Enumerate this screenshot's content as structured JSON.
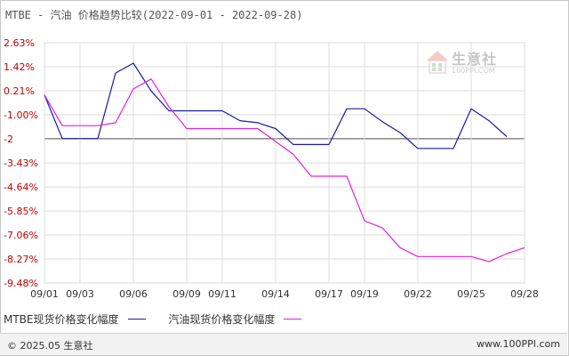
{
  "title": "MTBE - 汽油 价格趋势比较(2022-09-01 - 2022-09-28)",
  "watermark": {
    "text": "生意社",
    "sub": "100PPI.COM"
  },
  "legend": [
    {
      "label": "MTBE现货价格变化幅度",
      "color": "#1a1aa6"
    },
    {
      "label": "汽油现货价格变化幅度",
      "color": "#e020e0"
    }
  ],
  "footer": {
    "left": "© 2025.05 生意社",
    "right": "www.100PPI.com"
  },
  "chart_data": {
    "type": "line",
    "x": [
      "09/01",
      "09/02",
      "09/03",
      "09/04",
      "09/05",
      "09/06",
      "09/07",
      "09/08",
      "09/09",
      "09/10",
      "09/11",
      "09/12",
      "09/13",
      "09/14",
      "09/15",
      "09/16",
      "09/17",
      "09/18",
      "09/19",
      "09/20",
      "09/21",
      "09/22",
      "09/23",
      "09/24",
      "09/25",
      "09/26",
      "09/27",
      "09/28"
    ],
    "x_tick_labels": [
      "09/01",
      "09/03",
      "09/06",
      "09/09",
      "09/11",
      "09/14",
      "09/17",
      "09/19",
      "09/22",
      "09/25",
      "09/28"
    ],
    "y_tick_labels": [
      "2.63%",
      "1.42%",
      "0.21%",
      "-1.00%",
      "-2",
      "-3.43%",
      "-4.64%",
      "-5.85%",
      "-7.06%",
      "-8.27%",
      "-9.48%"
    ],
    "y_tick_values": [
      2.63,
      1.42,
      0.21,
      -1.0,
      -2.21,
      -3.43,
      -4.64,
      -5.85,
      -7.06,
      -8.27,
      -9.48
    ],
    "ylim": [
      -9.48,
      2.63
    ],
    "reference_line": -2.21,
    "grid": true,
    "series": [
      {
        "name": "MTBE现货价格变化幅度",
        "color": "#1a1aa6",
        "values": [
          0,
          -2.2,
          -2.2,
          -2.2,
          1.1,
          1.6,
          0.2,
          -0.8,
          -0.8,
          -0.8,
          -0.8,
          -1.3,
          -1.4,
          -1.7,
          -2.5,
          -2.5,
          -2.5,
          -0.7,
          -0.7,
          -1.35,
          -1.9,
          -2.7,
          -2.7,
          -2.7,
          -0.7,
          -1.3,
          -2.1,
          null
        ]
      },
      {
        "name": "汽油现货价格变化幅度",
        "color": "#e020e0",
        "values": [
          0,
          -1.55,
          -1.55,
          -1.55,
          -1.4,
          0.3,
          0.8,
          -0.6,
          -1.7,
          -1.7,
          -1.7,
          -1.7,
          -1.7,
          -2.35,
          -3.0,
          -4.1,
          -4.1,
          -4.1,
          -6.35,
          -6.7,
          -7.7,
          -8.15,
          -8.15,
          -8.15,
          -8.15,
          -8.4,
          -8.0,
          -7.7
        ]
      }
    ]
  }
}
